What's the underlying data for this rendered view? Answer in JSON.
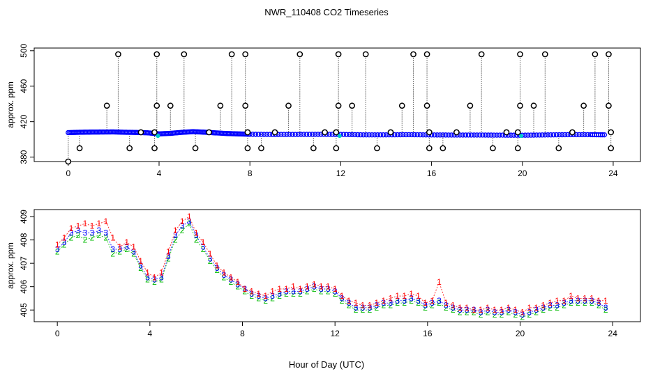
{
  "title": "NWR_110408  CO2 Timeseries",
  "xlabel": "Hour of Day (UTC)",
  "colors": {
    "frame": "#000000",
    "series_1": "#ff0000",
    "series_2": "#00bb00",
    "series_3": "#0000ff",
    "cyan": "#00cccc",
    "dotted": "#000000"
  },
  "chart_data": [
    {
      "type": "scatter",
      "id": "top",
      "title": "NWR_110408  CO2 Timeseries",
      "xlabel": "",
      "ylabel": "approx. ppm",
      "xlim": [
        -1.5,
        25.2
      ],
      "ylim": [
        375,
        503
      ],
      "xticks": [
        0,
        4,
        8,
        12,
        16,
        20,
        24
      ],
      "yticks": [
        380,
        420,
        460,
        500
      ],
      "baseline_series": [
        {
          "x": 0.0,
          "y": 407.6
        },
        {
          "x": 0.5,
          "y": 408.0
        },
        {
          "x": 1.0,
          "y": 408.2
        },
        {
          "x": 1.5,
          "y": 408.3
        },
        {
          "x": 2.0,
          "y": 408.4
        },
        {
          "x": 2.5,
          "y": 408.0
        },
        {
          "x": 3.0,
          "y": 407.8
        },
        {
          "x": 3.5,
          "y": 407.4
        },
        {
          "x": 4.0,
          "y": 406.2
        },
        {
          "x": 4.5,
          "y": 406.8
        },
        {
          "x": 5.0,
          "y": 407.9
        },
        {
          "x": 5.5,
          "y": 408.7
        },
        {
          "x": 6.0,
          "y": 408.1
        },
        {
          "x": 6.5,
          "y": 407.3
        },
        {
          "x": 7.0,
          "y": 406.6
        },
        {
          "x": 7.5,
          "y": 406.2
        },
        {
          "x": 8.0,
          "y": 405.8
        },
        {
          "x": 9.0,
          "y": 405.5
        },
        {
          "x": 10.0,
          "y": 405.6
        },
        {
          "x": 11.0,
          "y": 405.7
        },
        {
          "x": 12.0,
          "y": 405.6
        },
        {
          "x": 13.0,
          "y": 405.1
        },
        {
          "x": 14.0,
          "y": 405.1
        },
        {
          "x": 15.0,
          "y": 405.3
        },
        {
          "x": 16.0,
          "y": 405.0
        },
        {
          "x": 17.0,
          "y": 404.9
        },
        {
          "x": 18.0,
          "y": 404.9
        },
        {
          "x": 19.0,
          "y": 404.8
        },
        {
          "x": 20.0,
          "y": 404.7
        },
        {
          "x": 21.0,
          "y": 405.0
        },
        {
          "x": 22.0,
          "y": 405.3
        },
        {
          "x": 23.0,
          "y": 405.3
        },
        {
          "x": 23.7,
          "y": 405.1
        }
      ],
      "spikes": [
        {
          "x": 0.0,
          "y": 375
        },
        {
          "x": 0.5,
          "y": 390
        },
        {
          "x": 1.7,
          "y": 438
        },
        {
          "x": 2.2,
          "y": 496
        },
        {
          "x": 2.7,
          "y": 390
        },
        {
          "x": 3.2,
          "y": 408
        },
        {
          "x": 3.8,
          "y": 390
        },
        {
          "x": 3.8,
          "y": 408
        },
        {
          "x": 3.9,
          "y": 438
        },
        {
          "x": 3.9,
          "y": 496
        },
        {
          "x": 4.5,
          "y": 438
        },
        {
          "x": 5.1,
          "y": 496
        },
        {
          "x": 5.6,
          "y": 390
        },
        {
          "x": 6.2,
          "y": 408
        },
        {
          "x": 6.7,
          "y": 438
        },
        {
          "x": 7.2,
          "y": 496
        },
        {
          "x": 7.8,
          "y": 496
        },
        {
          "x": 7.8,
          "y": 438
        },
        {
          "x": 7.9,
          "y": 408
        },
        {
          "x": 7.9,
          "y": 390
        },
        {
          "x": 8.5,
          "y": 390
        },
        {
          "x": 9.1,
          "y": 408
        },
        {
          "x": 9.7,
          "y": 438
        },
        {
          "x": 10.2,
          "y": 496
        },
        {
          "x": 10.8,
          "y": 390
        },
        {
          "x": 11.3,
          "y": 408
        },
        {
          "x": 11.8,
          "y": 390
        },
        {
          "x": 11.8,
          "y": 408
        },
        {
          "x": 11.9,
          "y": 438
        },
        {
          "x": 11.9,
          "y": 496
        },
        {
          "x": 12.5,
          "y": 438
        },
        {
          "x": 13.1,
          "y": 496
        },
        {
          "x": 13.6,
          "y": 390
        },
        {
          "x": 14.2,
          "y": 408
        },
        {
          "x": 14.7,
          "y": 438
        },
        {
          "x": 15.2,
          "y": 496
        },
        {
          "x": 15.8,
          "y": 496
        },
        {
          "x": 15.8,
          "y": 438
        },
        {
          "x": 15.9,
          "y": 408
        },
        {
          "x": 15.9,
          "y": 390
        },
        {
          "x": 16.5,
          "y": 390
        },
        {
          "x": 17.1,
          "y": 408
        },
        {
          "x": 17.7,
          "y": 438
        },
        {
          "x": 18.2,
          "y": 496
        },
        {
          "x": 18.7,
          "y": 390
        },
        {
          "x": 19.3,
          "y": 408
        },
        {
          "x": 19.8,
          "y": 390
        },
        {
          "x": 19.8,
          "y": 408
        },
        {
          "x": 19.9,
          "y": 438
        },
        {
          "x": 19.9,
          "y": 496
        },
        {
          "x": 20.5,
          "y": 438
        },
        {
          "x": 21.0,
          "y": 496
        },
        {
          "x": 21.6,
          "y": 390
        },
        {
          "x": 22.2,
          "y": 408
        },
        {
          "x": 22.7,
          "y": 438
        },
        {
          "x": 23.2,
          "y": 496
        },
        {
          "x": 23.8,
          "y": 496
        },
        {
          "x": 23.8,
          "y": 438
        },
        {
          "x": 23.9,
          "y": 408
        },
        {
          "x": 23.9,
          "y": 390
        }
      ]
    },
    {
      "type": "line",
      "id": "bottom",
      "xlabel": "Hour of Day (UTC)",
      "ylabel": "approx. ppm",
      "xlim": [
        -1.0,
        25.2
      ],
      "ylim": [
        404.5,
        409.3
      ],
      "xticks": [
        0,
        4,
        8,
        12,
        16,
        20,
        24
      ],
      "yticks": [
        405,
        406,
        407,
        408,
        409
      ],
      "series": [
        {
          "name": "1",
          "marker": "1",
          "x": [
            0.0,
            0.3,
            0.6,
            0.9,
            1.2,
            1.5,
            1.8,
            2.1,
            2.4,
            2.7,
            3.0,
            3.3,
            3.6,
            3.9,
            4.2,
            4.5,
            4.8,
            5.1,
            5.4,
            5.7,
            6.0,
            6.3,
            6.6,
            6.9,
            7.2,
            7.5,
            7.8,
            8.1,
            8.4,
            8.7,
            9.0,
            9.3,
            9.6,
            9.9,
            10.2,
            10.5,
            10.8,
            11.1,
            11.4,
            11.7,
            12.0,
            12.3,
            12.6,
            12.9,
            13.2,
            13.5,
            13.8,
            14.1,
            14.4,
            14.7,
            15.0,
            15.3,
            15.6,
            15.9,
            16.2,
            16.5,
            16.8,
            17.1,
            17.4,
            17.7,
            18.0,
            18.3,
            18.6,
            18.9,
            19.2,
            19.5,
            19.8,
            20.1,
            20.4,
            20.7,
            21.0,
            21.3,
            21.6,
            21.9,
            22.2,
            22.5,
            22.8,
            23.1,
            23.4,
            23.7
          ],
          "y": [
            407.8,
            408.1,
            408.5,
            408.6,
            408.7,
            408.6,
            408.7,
            408.8,
            408.1,
            407.7,
            407.9,
            407.7,
            407.1,
            406.6,
            406.4,
            406.6,
            407.5,
            408.4,
            408.8,
            409.0,
            408.3,
            407.9,
            407.4,
            406.9,
            406.6,
            406.4,
            406.2,
            405.9,
            405.8,
            405.7,
            405.6,
            405.8,
            405.9,
            405.9,
            406.0,
            405.9,
            406.0,
            406.1,
            406.0,
            406.0,
            405.9,
            405.6,
            405.4,
            405.3,
            405.2,
            405.2,
            405.3,
            405.4,
            405.5,
            405.6,
            405.6,
            405.7,
            405.6,
            405.3,
            405.4,
            406.2,
            405.3,
            405.2,
            405.1,
            405.1,
            405.0,
            405.0,
            405.1,
            405.0,
            405.0,
            405.1,
            405.0,
            404.9,
            405.1,
            405.1,
            405.2,
            405.3,
            405.4,
            405.4,
            405.6,
            405.5,
            405.5,
            405.5,
            405.4,
            405.4
          ]
        },
        {
          "name": "2",
          "marker": "2",
          "x": [
            0.0,
            0.3,
            0.6,
            0.9,
            1.2,
            1.5,
            1.8,
            2.1,
            2.4,
            2.7,
            3.0,
            3.3,
            3.6,
            3.9,
            4.2,
            4.5,
            4.8,
            5.1,
            5.4,
            5.7,
            6.0,
            6.3,
            6.6,
            6.9,
            7.2,
            7.5,
            7.8,
            8.1,
            8.4,
            8.7,
            9.0,
            9.3,
            9.6,
            9.9,
            10.2,
            10.5,
            10.8,
            11.1,
            11.4,
            11.7,
            12.0,
            12.3,
            12.6,
            12.9,
            13.2,
            13.5,
            13.8,
            14.1,
            14.4,
            14.7,
            15.0,
            15.3,
            15.6,
            15.9,
            16.2,
            16.5,
            16.8,
            17.1,
            17.4,
            17.7,
            18.0,
            18.3,
            18.6,
            18.9,
            19.2,
            19.5,
            19.8,
            20.1,
            20.4,
            20.7,
            21.0,
            21.3,
            21.6,
            21.9,
            22.2,
            22.5,
            22.8,
            23.1,
            23.4,
            23.7
          ],
          "y": [
            407.5,
            407.8,
            408.1,
            408.2,
            408.0,
            408.1,
            408.2,
            408.1,
            407.4,
            407.5,
            407.6,
            407.4,
            406.8,
            406.3,
            406.2,
            406.3,
            407.2,
            408.0,
            408.4,
            408.7,
            408.0,
            407.6,
            407.1,
            406.7,
            406.4,
            406.2,
            406.0,
            405.8,
            405.6,
            405.5,
            405.4,
            405.5,
            405.6,
            405.7,
            405.7,
            405.7,
            405.8,
            405.9,
            405.8,
            405.8,
            405.7,
            405.4,
            405.2,
            405.0,
            405.0,
            405.0,
            405.1,
            405.2,
            405.2,
            405.3,
            405.3,
            405.4,
            405.3,
            405.1,
            405.2,
            405.3,
            405.1,
            405.0,
            404.9,
            404.9,
            404.9,
            404.8,
            404.9,
            404.8,
            404.8,
            404.9,
            404.8,
            404.7,
            404.8,
            404.9,
            405.0,
            405.1,
            405.1,
            405.2,
            405.3,
            405.3,
            405.3,
            405.3,
            405.2,
            405.0
          ]
        },
        {
          "name": "3",
          "marker": "3",
          "x": [
            0.0,
            0.3,
            0.6,
            0.9,
            1.2,
            1.5,
            1.8,
            2.1,
            2.4,
            2.7,
            3.0,
            3.3,
            3.6,
            3.9,
            4.2,
            4.5,
            4.8,
            5.1,
            5.4,
            5.7,
            6.0,
            6.3,
            6.6,
            6.9,
            7.2,
            7.5,
            7.8,
            8.1,
            8.4,
            8.7,
            9.0,
            9.3,
            9.6,
            9.9,
            10.2,
            10.5,
            10.8,
            11.1,
            11.4,
            11.7,
            12.0,
            12.3,
            12.6,
            12.9,
            13.2,
            13.5,
            13.8,
            14.1,
            14.4,
            14.7,
            15.0,
            15.3,
            15.6,
            15.9,
            16.2,
            16.5,
            16.8,
            17.1,
            17.4,
            17.7,
            18.0,
            18.3,
            18.6,
            18.9,
            19.2,
            19.5,
            19.8,
            20.1,
            20.4,
            20.7,
            21.0,
            21.3,
            21.6,
            21.9,
            22.2,
            22.5,
            22.8,
            23.1,
            23.4,
            23.7
          ],
          "y": [
            407.6,
            407.9,
            408.3,
            408.4,
            408.3,
            408.3,
            408.4,
            408.3,
            407.6,
            407.6,
            407.7,
            407.5,
            406.9,
            406.4,
            406.3,
            406.4,
            407.3,
            408.2,
            408.6,
            408.8,
            408.2,
            407.7,
            407.2,
            406.8,
            406.5,
            406.3,
            406.1,
            405.9,
            405.7,
            405.6,
            405.5,
            405.6,
            405.7,
            405.8,
            405.8,
            405.8,
            405.9,
            406.0,
            405.9,
            405.9,
            405.8,
            405.5,
            405.3,
            405.1,
            405.1,
            405.1,
            405.2,
            405.3,
            405.3,
            405.4,
            405.4,
            405.5,
            405.4,
            405.2,
            405.3,
            405.4,
            405.2,
            405.1,
            405.0,
            405.0,
            405.0,
            404.9,
            405.0,
            404.9,
            404.9,
            405.0,
            404.9,
            404.8,
            404.9,
            405.0,
            405.1,
            405.2,
            405.2,
            405.3,
            405.4,
            405.4,
            405.4,
            405.4,
            405.3,
            405.1
          ]
        }
      ]
    }
  ]
}
